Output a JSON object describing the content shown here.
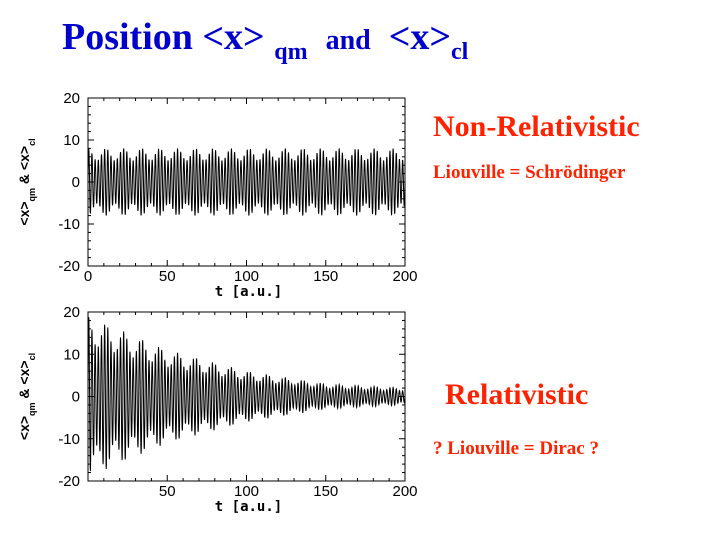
{
  "title": {
    "main": "Position <x>",
    "sub1": "qm",
    "and": "and",
    "main2": "<x>",
    "sub2": "cl"
  },
  "side": {
    "nonrel_heading": "Non-Relativistic",
    "nonrel_caption": "Liouville = Schrödinger",
    "rel_heading": "Relativistic",
    "rel_caption": "? Liouville = Dirac  ?"
  },
  "chart_data": [
    {
      "type": "line",
      "title": "",
      "xlabel": "t [a.u.]",
      "ylabel": "<x>qm & <x>cl",
      "ylabel_parts": {
        "a": "<x>",
        "s1": "qm",
        "amp": "&",
        "b": "<x>",
        "s2": "cl"
      },
      "xlim": [
        0,
        200
      ],
      "ylim": [
        -20,
        20
      ],
      "xticks": [
        0,
        50,
        100,
        150,
        200
      ],
      "yticks": [
        -20,
        -10,
        0,
        10,
        20
      ],
      "grid": false,
      "series": [
        {
          "amplitude_envelope": [
            {
              "t": 0,
              "amp": 8
            },
            {
              "t": 100,
              "amp": 8
            },
            {
              "t": 200,
              "amp": 8
            }
          ],
          "period": 2.0,
          "color": "#000000"
        }
      ]
    },
    {
      "type": "line",
      "title": "",
      "xlabel": "t [a.u.]",
      "ylabel": "<x>qm & <x>cl",
      "ylabel_parts": {
        "a": "<x>",
        "s1": "qm",
        "amp": "&",
        "b": "<x>",
        "s2": "cl"
      },
      "xlim": [
        0,
        200
      ],
      "ylim": [
        -20,
        20
      ],
      "xticks": [
        50,
        100,
        150,
        200
      ],
      "yticks": [
        -20,
        -10,
        0,
        10,
        20
      ],
      "grid": false,
      "series": [
        {
          "amplitude_envelope": [
            {
              "t": 0,
              "amp": 19
            },
            {
              "t": 50,
              "amp": 11
            },
            {
              "t": 100,
              "amp": 6
            },
            {
              "t": 150,
              "amp": 3
            },
            {
              "t": 200,
              "amp": 2
            }
          ],
          "period": 2.0,
          "color": "#000000"
        }
      ]
    }
  ]
}
